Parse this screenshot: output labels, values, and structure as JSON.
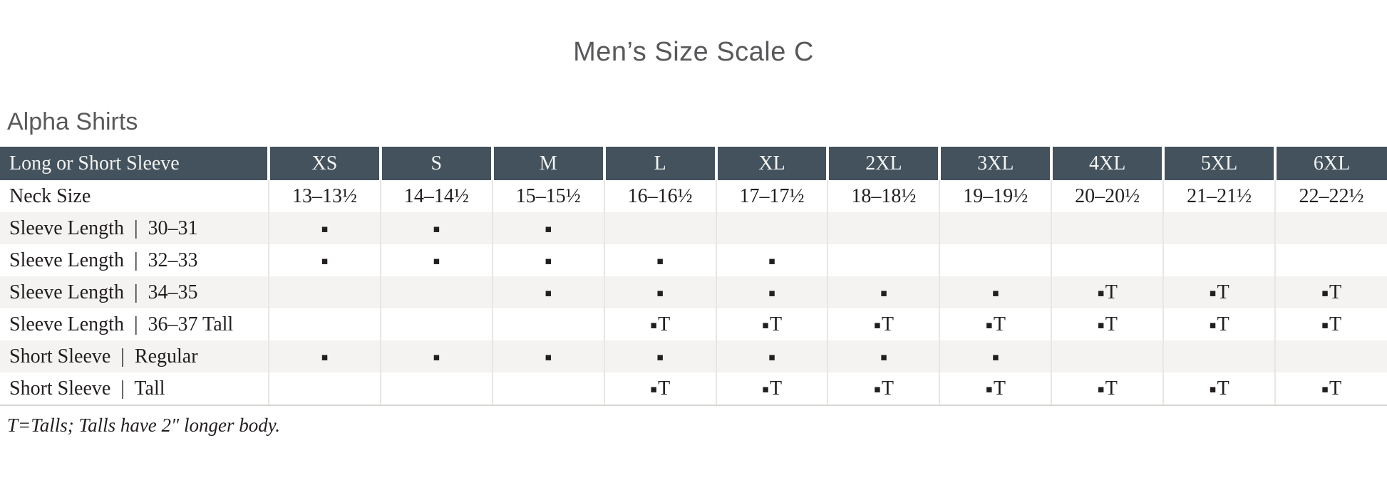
{
  "title": "Men’s Size Scale C",
  "section": {
    "heading": "Alpha Shirts"
  },
  "footnote": "T=Talls; Talls have 2″ longer body.",
  "colors": {
    "header_bg": "#44525d",
    "header_text": "#f2f3f2",
    "row_stripe": "#f4f3f1",
    "heading_gray": "#58595b",
    "body_text": "#221e1f",
    "column_divider": "#e8e6e3"
  },
  "markers": {
    "square": "▪",
    "tall_suffix": "T"
  },
  "table": {
    "header": [
      "Long or Short Sleeve",
      "XS",
      "S",
      "M",
      "L",
      "XL",
      "2XL",
      "3XL",
      "4XL",
      "5XL",
      "6XL"
    ],
    "rows": [
      {
        "label": "Neck Size",
        "type": "text",
        "cells": [
          "13–13½",
          "14–14½",
          "15–15½",
          "16–16½",
          "17–17½",
          "18–18½",
          "19–19½",
          "20–20½",
          "21–21½",
          "22–22½"
        ]
      },
      {
        "label": "Sleeve Length  |  30–31",
        "type": "marks",
        "cells": [
          "dot",
          "dot",
          "dot",
          "",
          "",
          "",
          "",
          "",
          "",
          ""
        ]
      },
      {
        "label": "Sleeve Length  |  32–33",
        "type": "marks",
        "cells": [
          "dot",
          "dot",
          "dot",
          "dot",
          "dot",
          "",
          "",
          "",
          "",
          ""
        ]
      },
      {
        "label": "Sleeve Length  |  34–35",
        "type": "marks",
        "cells": [
          "",
          "",
          "dot",
          "dot",
          "dot",
          "dot",
          "dot",
          "dotT",
          "dotT",
          "dotT"
        ]
      },
      {
        "label": "Sleeve Length  |  36–37 Tall",
        "type": "marks",
        "cells": [
          "",
          "",
          "",
          "dotT",
          "dotT",
          "dotT",
          "dotT",
          "dotT",
          "dotT",
          "dotT"
        ]
      },
      {
        "label": "Short Sleeve  |  Regular",
        "type": "marks",
        "cells": [
          "dot",
          "dot",
          "dot",
          "dot",
          "dot",
          "dot",
          "dot",
          "",
          "",
          ""
        ]
      },
      {
        "label": "Short Sleeve  |  Tall",
        "type": "marks",
        "cells": [
          "",
          "",
          "",
          "dotT",
          "dotT",
          "dotT",
          "dotT",
          "dotT",
          "dotT",
          "dotT"
        ]
      }
    ]
  }
}
